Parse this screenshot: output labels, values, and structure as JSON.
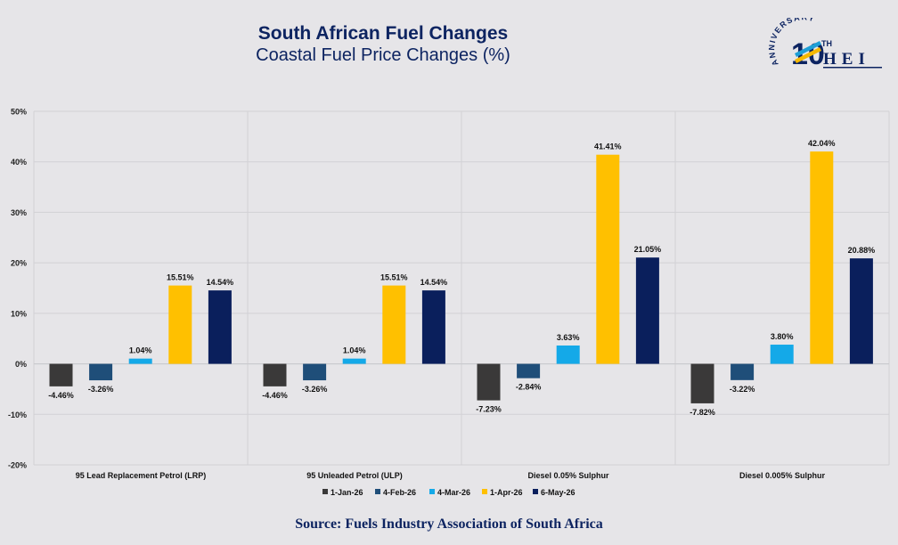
{
  "header": {
    "title": "South African Fuel Changes",
    "subtitle": "Coastal Fuel Price Changes (%)"
  },
  "logo": {
    "arc_text": "ANNIVERSARY",
    "number": "10",
    "suffix": "TH",
    "letters": "HEI",
    "colors": {
      "navy": "#0d2461",
      "cyan": "#1e9fd6",
      "gold": "#f5b800"
    }
  },
  "source": "Source: Fuels Industry Association of South Africa",
  "chart_data": {
    "type": "bar",
    "title": "",
    "xlabel": "",
    "ylabel": "",
    "ylim": [
      -20,
      50
    ],
    "yticks": [
      -20,
      -10,
      0,
      10,
      20,
      30,
      40,
      50
    ],
    "ytick_labels": [
      "-20%",
      "-10%",
      "0%",
      "10%",
      "20%",
      "30%",
      "40%",
      "50%"
    ],
    "grid": true,
    "legend_position": "bottom",
    "categories": [
      "95 Lead Replacement Petrol (LRP)",
      "95 Unleaded Petrol (ULP)",
      "Diesel 0.05% Sulphur",
      "Diesel 0.005% Sulphur"
    ],
    "series": [
      {
        "name": "1-Jan-26",
        "color": "#3a3939",
        "values": [
          -4.46,
          -4.46,
          -7.23,
          -7.82
        ],
        "labels": [
          "-4.46%",
          "-4.46%",
          "-7.23%",
          "-7.82%"
        ]
      },
      {
        "name": "4-Feb-26",
        "color": "#1f4e79",
        "values": [
          -3.26,
          -3.26,
          -2.84,
          -3.22
        ],
        "labels": [
          "-3.26%",
          "-3.26%",
          "-2.84%",
          "-3.22%"
        ]
      },
      {
        "name": "4-Mar-26",
        "color": "#14a9e8",
        "values": [
          1.04,
          1.04,
          3.63,
          3.8
        ],
        "labels": [
          "1.04%",
          "1.04%",
          "3.63%",
          "3.80%"
        ]
      },
      {
        "name": "1-Apr-26",
        "color": "#ffc000",
        "values": [
          15.51,
          15.51,
          41.41,
          42.04
        ],
        "labels": [
          "15.51%",
          "15.51%",
          "41.41%",
          "42.04%"
        ]
      },
      {
        "name": "6-May-26",
        "color": "#0a1f5c",
        "values": [
          14.54,
          14.54,
          21.05,
          20.88
        ],
        "labels": [
          "14.54%",
          "14.54%",
          "21.05%",
          "20.88%"
        ]
      }
    ]
  }
}
